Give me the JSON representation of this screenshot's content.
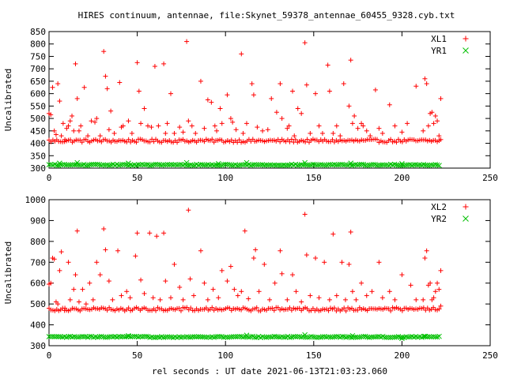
{
  "title": "HIRES continuum, antennae, file:Skynet_59378_antennae_60455_9328.cyb.txt",
  "xlabel": "rel seconds : UT date 2021-06-13T21:03:23.060",
  "chart_data": [
    {
      "type": "scatter",
      "ylabel": "Uncalibrated",
      "xlim": [
        0,
        250
      ],
      "ylim": [
        300,
        850
      ],
      "xticks": [
        0,
        50,
        100,
        150,
        200,
        250
      ],
      "yticks": [
        300,
        350,
        400,
        450,
        500,
        550,
        600,
        650,
        700,
        750,
        800,
        850
      ],
      "legend_position": "top-right",
      "series": [
        {
          "name": "XL1",
          "marker": "plus",
          "color": "#ff0000",
          "baseline": 410,
          "x_range": [
            0,
            222
          ],
          "outliers": [
            [
              0,
              520
            ],
            [
              1,
              515
            ],
            [
              2,
              625
            ],
            [
              3,
              450
            ],
            [
              4,
              435
            ],
            [
              5,
              640
            ],
            [
              6,
              570
            ],
            [
              7,
              430
            ],
            [
              8,
              480
            ],
            [
              9,
              415
            ],
            [
              10,
              460
            ],
            [
              11,
              470
            ],
            [
              12,
              490
            ],
            [
              13,
              510
            ],
            [
              14,
              450
            ],
            [
              15,
              720
            ],
            [
              16,
              580
            ],
            [
              17,
              450
            ],
            [
              18,
              470
            ],
            [
              20,
              625
            ],
            [
              22,
              430
            ],
            [
              24,
              490
            ],
            [
              26,
              485
            ],
            [
              27,
              500
            ],
            [
              29,
              430
            ],
            [
              31,
              770
            ],
            [
              32,
              670
            ],
            [
              33,
              620
            ],
            [
              34,
              455
            ],
            [
              35,
              530
            ],
            [
              37,
              440
            ],
            [
              40,
              645
            ],
            [
              41,
              465
            ],
            [
              42,
              470
            ],
            [
              45,
              490
            ],
            [
              47,
              440
            ],
            [
              50,
              725
            ],
            [
              51,
              610
            ],
            [
              52,
              480
            ],
            [
              54,
              540
            ],
            [
              56,
              470
            ],
            [
              58,
              465
            ],
            [
              60,
              710
            ],
            [
              62,
              470
            ],
            [
              65,
              720
            ],
            [
              66,
              440
            ],
            [
              67,
              480
            ],
            [
              69,
              600
            ],
            [
              71,
              440
            ],
            [
              74,
              465
            ],
            [
              76,
              445
            ],
            [
              78,
              810
            ],
            [
              79,
              490
            ],
            [
              81,
              470
            ],
            [
              83,
              440
            ],
            [
              86,
              650
            ],
            [
              88,
              460
            ],
            [
              90,
              575
            ],
            [
              92,
              565
            ],
            [
              94,
              470
            ],
            [
              95,
              450
            ],
            [
              97,
              540
            ],
            [
              98,
              480
            ],
            [
              101,
              595
            ],
            [
              103,
              500
            ],
            [
              104,
              485
            ],
            [
              106,
              455
            ],
            [
              109,
              760
            ],
            [
              110,
              440
            ],
            [
              112,
              480
            ],
            [
              115,
              640
            ],
            [
              116,
              595
            ],
            [
              118,
              465
            ],
            [
              121,
              450
            ],
            [
              124,
              455
            ],
            [
              126,
              580
            ],
            [
              129,
              525
            ],
            [
              131,
              640
            ],
            [
              132,
              500
            ],
            [
              135,
              460
            ],
            [
              136,
              470
            ],
            [
              138,
              610
            ],
            [
              139,
              430
            ],
            [
              141,
              540
            ],
            [
              143,
              520
            ],
            [
              145,
              805
            ],
            [
              146,
              635
            ],
            [
              148,
              440
            ],
            [
              151,
              600
            ],
            [
              153,
              470
            ],
            [
              155,
              440
            ],
            [
              158,
              715
            ],
            [
              159,
              610
            ],
            [
              161,
              440
            ],
            [
              163,
              470
            ],
            [
              165,
              430
            ],
            [
              167,
              640
            ],
            [
              170,
              550
            ],
            [
              171,
              735
            ],
            [
              172,
              480
            ],
            [
              173,
              510
            ],
            [
              175,
              460
            ],
            [
              177,
              480
            ],
            [
              178,
              470
            ],
            [
              180,
              450
            ],
            [
              182,
              430
            ],
            [
              185,
              615
            ],
            [
              187,
              460
            ],
            [
              189,
              440
            ],
            [
              193,
              555
            ],
            [
              196,
              470
            ],
            [
              200,
              445
            ],
            [
              203,
              480
            ],
            [
              208,
              630
            ],
            [
              212,
              450
            ],
            [
              213,
              660
            ],
            [
              214,
              640
            ],
            [
              215,
              470
            ],
            [
              216,
              520
            ],
            [
              217,
              525
            ],
            [
              218,
              480
            ],
            [
              219,
              510
            ],
            [
              220,
              490
            ],
            [
              221,
              430
            ],
            [
              222,
              580
            ],
            [
              222,
              415
            ]
          ]
        },
        {
          "name": "YR1",
          "marker": "cross",
          "color": "#00c000",
          "baseline": 313,
          "x_range": [
            0,
            222
          ],
          "outliers": [
            [
              6,
              320
            ],
            [
              16,
              322
            ],
            [
              45,
              320
            ],
            [
              78,
              322
            ],
            [
              96,
              318
            ],
            [
              112,
              322
            ],
            [
              145,
              322
            ],
            [
              171,
              320
            ],
            [
              200,
              318
            ]
          ]
        }
      ]
    },
    {
      "type": "scatter",
      "ylabel": "Uncalibrated",
      "xlim": [
        0,
        250
      ],
      "ylim": [
        300,
        1000
      ],
      "xticks": [
        0,
        50,
        100,
        150,
        200,
        250
      ],
      "yticks": [
        300,
        400,
        500,
        600,
        700,
        800,
        900,
        1000
      ],
      "legend_position": "top-right",
      "series": [
        {
          "name": "XL2",
          "marker": "plus",
          "color": "#ff0000",
          "baseline": 475,
          "x_range": [
            0,
            222
          ],
          "outliers": [
            [
              0,
              595
            ],
            [
              1,
              600
            ],
            [
              2,
              720
            ],
            [
              3,
              715
            ],
            [
              4,
              510
            ],
            [
              5,
              500
            ],
            [
              6,
              660
            ],
            [
              7,
              750
            ],
            [
              9,
              480
            ],
            [
              11,
              700
            ],
            [
              12,
              520
            ],
            [
              14,
              570
            ],
            [
              15,
              640
            ],
            [
              16,
              850
            ],
            [
              17,
              510
            ],
            [
              19,
              570
            ],
            [
              21,
              500
            ],
            [
              23,
              600
            ],
            [
              25,
              520
            ],
            [
              27,
              700
            ],
            [
              29,
              640
            ],
            [
              31,
              860
            ],
            [
              32,
              760
            ],
            [
              34,
              610
            ],
            [
              36,
              520
            ],
            [
              39,
              755
            ],
            [
              41,
              540
            ],
            [
              44,
              560
            ],
            [
              46,
              530
            ],
            [
              49,
              730
            ],
            [
              50,
              840
            ],
            [
              52,
              615
            ],
            [
              54,
              550
            ],
            [
              57,
              840
            ],
            [
              59,
              530
            ],
            [
              61,
              825
            ],
            [
              63,
              520
            ],
            [
              65,
              840
            ],
            [
              66,
              610
            ],
            [
              69,
              530
            ],
            [
              71,
              690
            ],
            [
              74,
              580
            ],
            [
              76,
              520
            ],
            [
              79,
              950
            ],
            [
              80,
              620
            ],
            [
              82,
              540
            ],
            [
              86,
              755
            ],
            [
              88,
              600
            ],
            [
              90,
              520
            ],
            [
              93,
              570
            ],
            [
              96,
              530
            ],
            [
              98,
              660
            ],
            [
              101,
              610
            ],
            [
              103,
              680
            ],
            [
              105,
              570
            ],
            [
              107,
              540
            ],
            [
              109,
              560
            ],
            [
              111,
              850
            ],
            [
              113,
              525
            ],
            [
              116,
              720
            ],
            [
              117,
              760
            ],
            [
              119,
              560
            ],
            [
              122,
              690
            ],
            [
              125,
              520
            ],
            [
              128,
              600
            ],
            [
              131,
              755
            ],
            [
              132,
              645
            ],
            [
              135,
              520
            ],
            [
              138,
              640
            ],
            [
              140,
              560
            ],
            [
              143,
              510
            ],
            [
              145,
              930
            ],
            [
              146,
              735
            ],
            [
              148,
              540
            ],
            [
              151,
              720
            ],
            [
              153,
              530
            ],
            [
              156,
              700
            ],
            [
              159,
              520
            ],
            [
              161,
              835
            ],
            [
              163,
              540
            ],
            [
              166,
              700
            ],
            [
              168,
              520
            ],
            [
              170,
              690
            ],
            [
              171,
              845
            ],
            [
              172,
              560
            ],
            [
              174,
              520
            ],
            [
              177,
              600
            ],
            [
              180,
              540
            ],
            [
              183,
              560
            ],
            [
              187,
              700
            ],
            [
              189,
              530
            ],
            [
              193,
              560
            ],
            [
              196,
              520
            ],
            [
              200,
              640
            ],
            [
              205,
              590
            ],
            [
              208,
              520
            ],
            [
              212,
              520
            ],
            [
              213,
              720
            ],
            [
              214,
              755
            ],
            [
              215,
              590
            ],
            [
              216,
              600
            ],
            [
              217,
              520
            ],
            [
              218,
              530
            ],
            [
              219,
              560
            ],
            [
              220,
              600
            ],
            [
              221,
              570
            ],
            [
              222,
              660
            ],
            [
              222,
              490
            ]
          ]
        },
        {
          "name": "YR2",
          "marker": "cross",
          "color": "#00c000",
          "baseline": 342,
          "x_range": [
            0,
            222
          ],
          "outliers": [
            [
              45,
              348
            ],
            [
              112,
              350
            ],
            [
              145,
              352
            ],
            [
              172,
              348
            ],
            [
              200,
              335
            ],
            [
              213,
              345
            ]
          ]
        }
      ]
    }
  ]
}
